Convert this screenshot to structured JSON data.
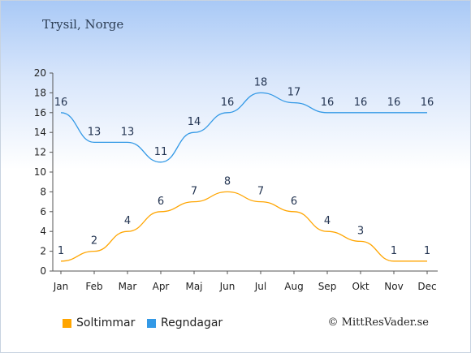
{
  "title": "Trysil, Norge",
  "credit": "© MittResVader.se",
  "chart_data": {
    "type": "line",
    "categories": [
      "Jan",
      "Feb",
      "Mar",
      "Apr",
      "Maj",
      "Jun",
      "Jul",
      "Aug",
      "Sep",
      "Okt",
      "Nov",
      "Dec"
    ],
    "series": [
      {
        "name": "Soltimmar",
        "color": "#ffa500",
        "values": [
          1,
          2,
          4,
          6,
          7,
          8,
          7,
          6,
          4,
          3,
          1,
          1
        ]
      },
      {
        "name": "Regndagar",
        "color": "#3399e6",
        "values": [
          16,
          13,
          13,
          11,
          14,
          16,
          18,
          17,
          16,
          16,
          16,
          16
        ]
      }
    ],
    "ylim": [
      0,
      20
    ],
    "yticks": [
      0,
      2,
      4,
      6,
      8,
      10,
      12,
      14,
      16,
      18,
      20
    ],
    "legend_position": "bottom-left",
    "grid": false
  }
}
